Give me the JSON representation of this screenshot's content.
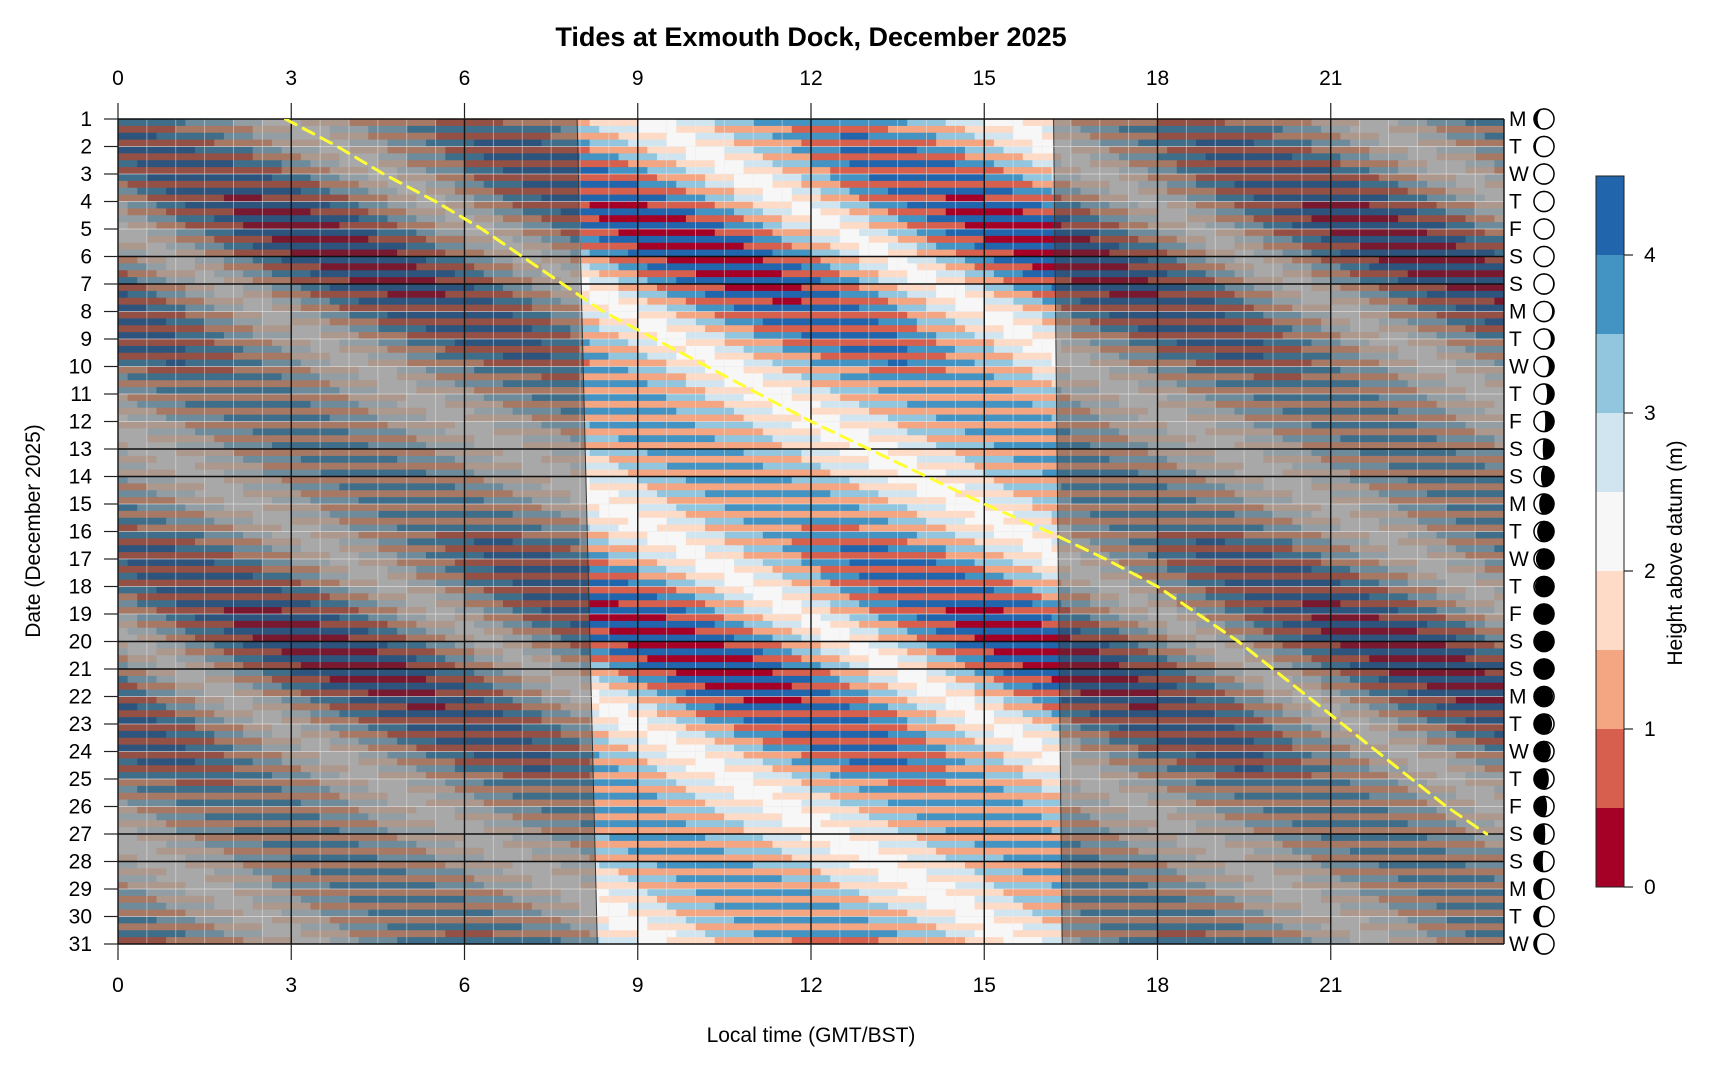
{
  "chart_data": {
    "type": "heatmap",
    "title": "Tides at Exmouth Dock, December 2025",
    "xlabel": "Local time (GMT/BST)",
    "ylabel": "Date (December 2025)",
    "colorbar_label": "Height above datum (m)",
    "x_ticks": [
      "0",
      "3",
      "6",
      "9",
      "12",
      "15",
      "18",
      "21"
    ],
    "x_range": [
      0,
      24
    ],
    "y_range": [
      1,
      31
    ],
    "days": [
      "1",
      "2",
      "3",
      "4",
      "5",
      "6",
      "7",
      "8",
      "9",
      "10",
      "11",
      "12",
      "13",
      "14",
      "15",
      "16",
      "17",
      "18",
      "19",
      "20",
      "21",
      "22",
      "23",
      "24",
      "25",
      "26",
      "27",
      "28",
      "29",
      "30",
      "31"
    ],
    "weekdays": [
      "M",
      "T",
      "W",
      "T",
      "F",
      "S",
      "S",
      "M",
      "T",
      "W",
      "T",
      "F",
      "S",
      "S",
      "M",
      "T",
      "W",
      "T",
      "F",
      "S",
      "S",
      "M",
      "T",
      "W",
      "T",
      "F",
      "S",
      "S",
      "M",
      "T",
      "W"
    ],
    "moon_phase": [
      0.36,
      0.4,
      0.43,
      0.47,
      0.5,
      0.53,
      0.57,
      0.6,
      0.63,
      0.67,
      0.7,
      0.73,
      0.77,
      0.8,
      0.83,
      0.87,
      0.9,
      0.93,
      0.97,
      0.0,
      0.03,
      0.07,
      0.1,
      0.13,
      0.17,
      0.2,
      0.23,
      0.27,
      0.3,
      0.33,
      0.37
    ],
    "colorbar_ticks": [
      "0",
      "1",
      "2",
      "3",
      "4"
    ],
    "levels": [
      0,
      0.5,
      1.0,
      1.5,
      2.0,
      2.5,
      3.0,
      3.5,
      4.0,
      4.5
    ],
    "level_colors": [
      "#a50026",
      "#d6604d",
      "#f4a582",
      "#fddbc7",
      "#f7f7f7",
      "#d1e5f0",
      "#92c5de",
      "#4393c3",
      "#2166ac"
    ],
    "daylight": [
      {
        "day": 1,
        "sunrise": 7.95,
        "sunset": 16.2
      },
      {
        "day": 31,
        "sunrise": 8.3,
        "sunset": 16.35
      }
    ],
    "high_water_track": [
      {
        "day": 1,
        "time": 2.9
      },
      {
        "day": 2,
        "time": 3.8
      },
      {
        "day": 3,
        "time": 4.6
      },
      {
        "day": 4,
        "time": 5.5
      },
      {
        "day": 5,
        "time": 6.3
      },
      {
        "day": 6,
        "time": 7.0
      },
      {
        "day": 7,
        "time": 7.7
      },
      {
        "day": 8,
        "time": 8.4
      },
      {
        "day": 9,
        "time": 9.3
      },
      {
        "day": 10,
        "time": 10.2
      },
      {
        "day": 11,
        "time": 11.1
      },
      {
        "day": 12,
        "time": 12.0
      },
      {
        "day": 13,
        "time": 13.0
      },
      {
        "day": 14,
        "time": 14.0
      },
      {
        "day": 15,
        "time": 15.0
      },
      {
        "day": 16,
        "time": 16.1
      },
      {
        "day": 17,
        "time": 17.1
      },
      {
        "day": 18,
        "time": 18.0
      },
      {
        "day": 19,
        "time": 18.7
      },
      {
        "day": 20,
        "time": 19.4
      },
      {
        "day": 21,
        "time": 20.0
      },
      {
        "day": 22,
        "time": 20.6
      },
      {
        "day": 23,
        "time": 21.2
      },
      {
        "day": 24,
        "time": 21.8
      },
      {
        "day": 25,
        "time": 22.4
      },
      {
        "day": 26,
        "time": 23.0
      },
      {
        "day": 27,
        "time": 23.7
      }
    ]
  }
}
